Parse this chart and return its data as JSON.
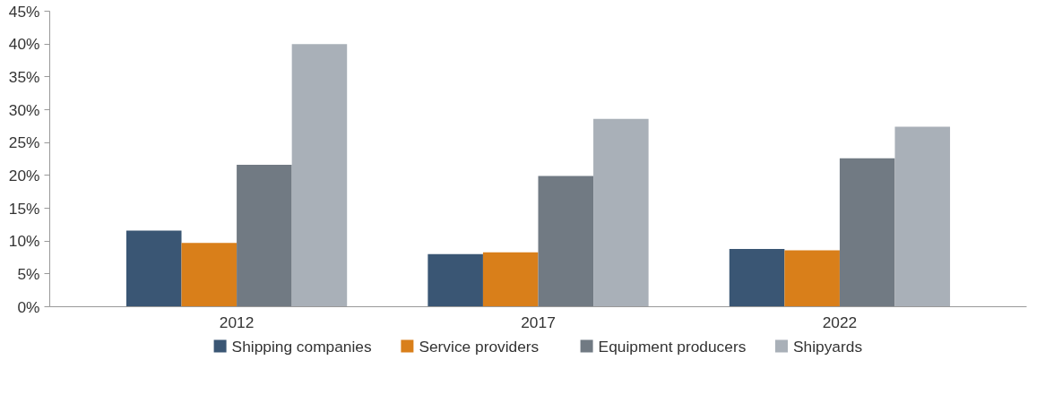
{
  "chart_data": {
    "type": "bar",
    "categories": [
      "2012",
      "2017",
      "2022"
    ],
    "series": [
      {
        "name": "Shipping companies",
        "color": "#3a5674",
        "values": [
          11.6,
          8.0,
          8.8
        ]
      },
      {
        "name": "Service providers",
        "color": "#d97f1a",
        "values": [
          9.7,
          8.3,
          8.6
        ]
      },
      {
        "name": "Equipment producers",
        "color": "#717a83",
        "values": [
          21.6,
          19.9,
          22.6
        ]
      },
      {
        "name": "Shipyards",
        "color": "#a9b0b8",
        "values": [
          40.0,
          28.6,
          27.4
        ]
      }
    ],
    "ylim": [
      0,
      45
    ],
    "yticks": [
      {
        "value": 0,
        "label": "0%"
      },
      {
        "value": 5,
        "label": "5%"
      },
      {
        "value": 10,
        "label": "10%"
      },
      {
        "value": 15,
        "label": "15%"
      },
      {
        "value": 20,
        "label": "20%"
      },
      {
        "value": 25,
        "label": "25%"
      },
      {
        "value": 30,
        "label": "30%"
      },
      {
        "value": 35,
        "label": "35%"
      },
      {
        "value": 40,
        "label": "40%"
      },
      {
        "value": 45,
        "label": "45%"
      }
    ],
    "grid": false,
    "legend": "bottom"
  }
}
